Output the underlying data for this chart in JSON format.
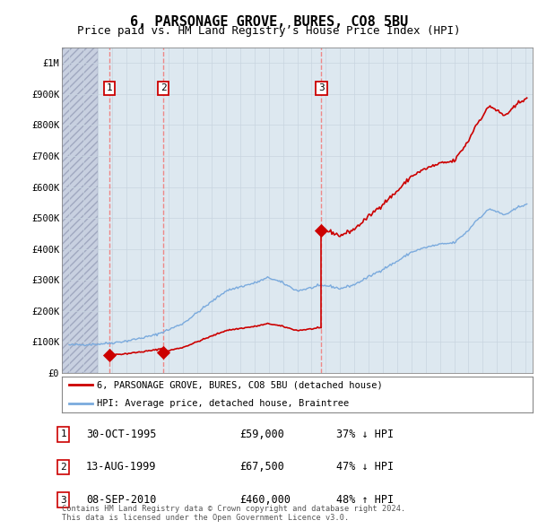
{
  "title": "6, PARSONAGE GROVE, BURES, CO8 5BU",
  "subtitle": "Price paid vs. HM Land Registry’s House Price Index (HPI)",
  "title_fontsize": 11,
  "subtitle_fontsize": 9,
  "sale_years": [
    1995.83,
    1999.62,
    2010.69
  ],
  "sale_prices": [
    59000,
    67500,
    460000
  ],
  "sale_labels": [
    "1",
    "2",
    "3"
  ],
  "sale_dates": [
    "30-OCT-1995",
    "13-AUG-1999",
    "08-SEP-2010"
  ],
  "sale_price_labels": [
    "£59,000",
    "£67,500",
    "£460,000"
  ],
  "sale_hpi_info": [
    "37% ↓ HPI",
    "47% ↓ HPI",
    "48% ↑ HPI"
  ],
  "ylim": [
    0,
    1050000
  ],
  "xlim": [
    1992.5,
    2025.5
  ],
  "ytick_vals": [
    0,
    100000,
    200000,
    300000,
    400000,
    500000,
    600000,
    700000,
    800000,
    900000,
    1000000
  ],
  "ytick_labels": [
    "£0",
    "£100K",
    "£200K",
    "£300K",
    "£400K",
    "£500K",
    "£600K",
    "£700K",
    "£800K",
    "£900K",
    "£1M"
  ],
  "xticks": [
    1993,
    1994,
    1995,
    1996,
    1997,
    1998,
    1999,
    2000,
    2001,
    2002,
    2003,
    2004,
    2005,
    2006,
    2007,
    2008,
    2009,
    2010,
    2011,
    2012,
    2013,
    2014,
    2015,
    2016,
    2017,
    2018,
    2019,
    2020,
    2021,
    2022,
    2023,
    2024,
    2025
  ],
  "hpi_color": "#7aaadd",
  "sale_color": "#cc0000",
  "vline_color": "#ee8888",
  "grid_color": "#c8d4e0",
  "bg_color": "#dde8f0",
  "hatch_region_end": 1995.0,
  "legend_sale_label": "6, PARSONAGE GROVE, BURES, CO8 5BU (detached house)",
  "legend_hpi_label": "HPI: Average price, detached house, Braintree",
  "footer_text": "Contains HM Land Registry data © Crown copyright and database right 2024.\nThis data is licensed under the Open Government Licence v3.0.",
  "hpi_linewidth": 1.0,
  "sale_linewidth": 1.2
}
